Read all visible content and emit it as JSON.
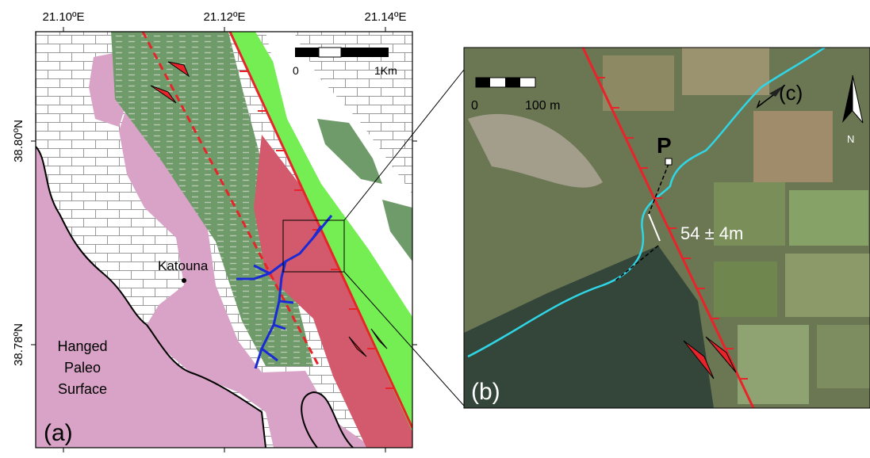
{
  "panel_a": {
    "label": "(a)",
    "lon_labels": [
      "21.10ºE",
      "21.12ºE",
      "21.14ºE"
    ],
    "lat_labels": [
      "38.80ºN",
      "38.78ºN"
    ],
    "scale": [
      "0",
      "1Km"
    ],
    "place": "Katouna",
    "surface_label": [
      "Hanged",
      "Paleo",
      "Surface"
    ]
  },
  "panel_b": {
    "label": "(b)",
    "view_label": "(c)",
    "point": "P",
    "offset": "54 ± 4m",
    "scale": [
      "0",
      "100 m"
    ],
    "north": "N"
  }
}
